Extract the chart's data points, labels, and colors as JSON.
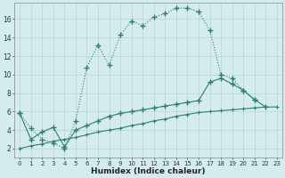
{
  "line1_x": [
    0,
    1,
    2,
    3,
    4,
    5,
    6,
    7,
    8,
    9,
    10,
    11,
    12,
    13,
    14,
    15,
    16,
    17,
    18,
    19,
    20,
    21,
    22,
    23
  ],
  "line1_y": [
    5.8,
    4.2,
    3.0,
    2.6,
    2.0,
    5.0,
    10.8,
    13.2,
    11.0,
    14.3,
    15.8,
    15.3,
    16.2,
    16.6,
    17.2,
    17.2,
    16.8,
    14.8,
    10.0,
    9.6,
    8.3,
    7.3,
    null,
    null
  ],
  "line2_x": [
    0,
    1,
    2,
    3,
    4,
    5,
    6,
    7,
    8,
    9,
    10,
    11,
    12,
    13,
    14,
    15,
    16,
    17,
    18,
    19,
    20,
    21,
    22,
    23
  ],
  "line2_y": [
    5.8,
    3.0,
    3.8,
    4.3,
    2.2,
    4.0,
    4.5,
    5.0,
    5.5,
    5.8,
    6.0,
    6.2,
    6.4,
    6.6,
    6.8,
    7.0,
    7.2,
    9.2,
    9.6,
    9.0,
    8.3,
    7.3,
    6.5,
    null
  ],
  "line3_x": [
    0,
    1,
    2,
    3,
    4,
    5,
    6,
    7,
    8,
    9,
    10,
    11,
    12,
    13,
    14,
    15,
    16,
    17,
    18,
    19,
    20,
    21,
    22,
    23
  ],
  "line3_y": [
    2.0,
    2.3,
    2.5,
    2.8,
    3.0,
    3.2,
    3.5,
    3.8,
    4.0,
    4.2,
    4.5,
    4.7,
    5.0,
    5.2,
    5.5,
    5.7,
    5.9,
    6.0,
    6.1,
    6.2,
    6.3,
    6.4,
    6.5,
    6.5
  ],
  "color": "#2e7d6e",
  "bg_color": "#d4ecee",
  "grid_color": "#b8d4d6",
  "xlabel": "Humidex (Indice chaleur)",
  "xlim": [
    -0.5,
    23.5
  ],
  "ylim": [
    1,
    17.8
  ],
  "yticks": [
    2,
    4,
    6,
    8,
    10,
    12,
    14,
    16
  ],
  "xticks": [
    0,
    1,
    2,
    3,
    4,
    5,
    6,
    7,
    8,
    9,
    10,
    11,
    12,
    13,
    14,
    15,
    16,
    17,
    18,
    19,
    20,
    21,
    22,
    23
  ]
}
